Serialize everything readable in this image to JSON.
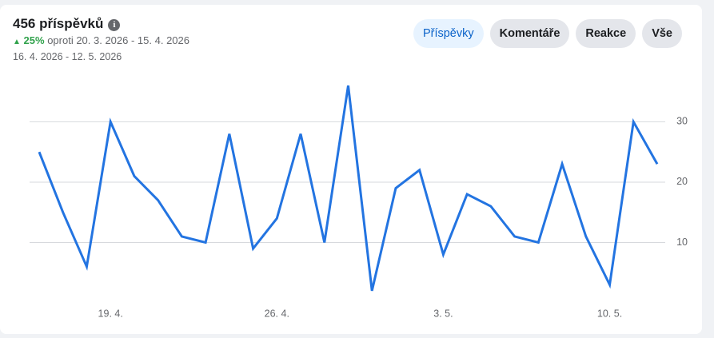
{
  "header": {
    "title": "456 příspěvků",
    "change": "25%",
    "comparison": "oproti 20. 3. 2026 - 15. 4. 2026",
    "range": "16. 4. 2026 - 12. 5. 2026"
  },
  "tabs": [
    "Příspěvky",
    "Komentáře",
    "Reakce",
    "Vše"
  ],
  "chart_data": {
    "type": "line",
    "color": "#2374e1",
    "grid": true,
    "categories": [
      null,
      null,
      null,
      "19. 4.",
      null,
      null,
      null,
      null,
      null,
      null,
      "26. 4.",
      null,
      null,
      null,
      null,
      null,
      null,
      "3. 5.",
      null,
      null,
      null,
      null,
      null,
      null,
      "10. 5.",
      null,
      null
    ],
    "values": [
      25,
      15,
      6,
      30,
      21,
      17,
      11,
      10,
      28,
      9,
      14,
      28,
      10,
      36,
      2,
      19,
      22,
      8,
      18,
      16,
      11,
      10,
      23,
      11,
      3,
      30,
      23
    ],
    "ylim": [
      0,
      38
    ],
    "yticks": [
      10,
      20,
      30
    ]
  }
}
